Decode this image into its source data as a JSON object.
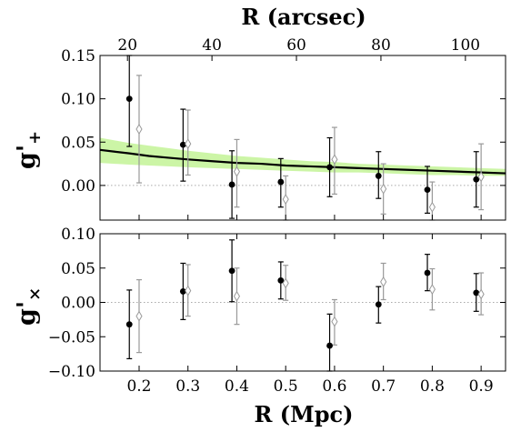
{
  "chart_data": [
    {
      "type": "scatter",
      "panel": "top",
      "xlabel": "R (Mpc)",
      "top_xlabel": "R (arcsec)",
      "ylabel": "g'",
      "ylabel_sub": "+",
      "xlim": [
        0.12,
        0.95
      ],
      "ylim": [
        -0.04,
        0.15
      ],
      "top_xlim": [
        13.5,
        109.5
      ],
      "top_xticks": [
        "20",
        "40",
        "60",
        "80",
        "100"
      ],
      "top_xtick_values": [
        20,
        40,
        60,
        80,
        100
      ],
      "yticks": [
        "0.15",
        "0.10",
        "0.05",
        "0.00"
      ],
      "ytick_values": [
        0.15,
        0.1,
        0.05,
        0.0
      ],
      "zero_line": true,
      "colors": {
        "filled": "#000000",
        "open": "#999999",
        "band": "#ccf5a6",
        "model": "#000000"
      },
      "series": [
        {
          "marker": "filled-circle",
          "points": [
            {
              "x": 0.18,
              "y": 0.1,
              "ylo": 0.045,
              "yhi": 0.15
            },
            {
              "x": 0.29,
              "y": 0.047,
              "ylo": 0.005,
              "yhi": 0.088
            },
            {
              "x": 0.39,
              "y": 0.001,
              "ylo": -0.038,
              "yhi": 0.04
            },
            {
              "x": 0.49,
              "y": 0.004,
              "ylo": -0.025,
              "yhi": 0.031
            },
            {
              "x": 0.59,
              "y": 0.021,
              "ylo": -0.013,
              "yhi": 0.055
            },
            {
              "x": 0.69,
              "y": 0.011,
              "ylo": -0.015,
              "yhi": 0.039
            },
            {
              "x": 0.79,
              "y": -0.005,
              "ylo": -0.032,
              "yhi": 0.022
            },
            {
              "x": 0.89,
              "y": 0.007,
              "ylo": -0.025,
              "yhi": 0.039
            }
          ]
        },
        {
          "marker": "open-diamond",
          "points": [
            {
              "x": 0.2,
              "y": 0.065,
              "ylo": 0.003,
              "yhi": 0.127
            },
            {
              "x": 0.3,
              "y": 0.048,
              "ylo": 0.012,
              "yhi": 0.087
            },
            {
              "x": 0.4,
              "y": 0.016,
              "ylo": -0.025,
              "yhi": 0.053
            },
            {
              "x": 0.5,
              "y": -0.016,
              "ylo": -0.04,
              "yhi": 0.011
            },
            {
              "x": 0.6,
              "y": 0.03,
              "ylo": -0.01,
              "yhi": 0.067
            },
            {
              "x": 0.7,
              "y": -0.004,
              "ylo": -0.033,
              "yhi": 0.025
            },
            {
              "x": 0.8,
              "y": -0.025,
              "ylo": -0.04,
              "yhi": 0.004
            },
            {
              "x": 0.9,
              "y": 0.01,
              "ylo": -0.028,
              "yhi": 0.048
            }
          ]
        }
      ],
      "model_curve": {
        "x": [
          0.12,
          0.15,
          0.18,
          0.22,
          0.26,
          0.3,
          0.35,
          0.4,
          0.45,
          0.5,
          0.55,
          0.6,
          0.65,
          0.7,
          0.75,
          0.8,
          0.85,
          0.9,
          0.95
        ],
        "y": [
          0.041,
          0.039,
          0.037,
          0.034,
          0.032,
          0.03,
          0.028,
          0.026,
          0.025,
          0.023,
          0.022,
          0.021,
          0.02,
          0.019,
          0.018,
          0.017,
          0.016,
          0.015,
          0.014
        ],
        "low": [
          0.026,
          0.025,
          0.024,
          0.023,
          0.022,
          0.021,
          0.02,
          0.019,
          0.018,
          0.017,
          0.016,
          0.015,
          0.015,
          0.014,
          0.013,
          0.012,
          0.012,
          0.011,
          0.011
        ],
        "high": [
          0.055,
          0.052,
          0.049,
          0.046,
          0.043,
          0.04,
          0.037,
          0.034,
          0.032,
          0.03,
          0.028,
          0.027,
          0.025,
          0.024,
          0.023,
          0.022,
          0.021,
          0.02,
          0.019
        ]
      }
    },
    {
      "type": "scatter",
      "panel": "bottom",
      "xlabel": "R (Mpc)",
      "ylabel": "g'",
      "ylabel_sub": "×",
      "xlim": [
        0.12,
        0.95
      ],
      "ylim": [
        -0.1,
        0.1
      ],
      "xticks": [
        "0.2",
        "0.3",
        "0.4",
        "0.5",
        "0.6",
        "0.7",
        "0.8",
        "0.9"
      ],
      "xtick_values": [
        0.2,
        0.3,
        0.4,
        0.5,
        0.6,
        0.7,
        0.8,
        0.9
      ],
      "yticks": [
        "0.10",
        "0.05",
        "0.00",
        "−0.05",
        "−0.10"
      ],
      "ytick_values": [
        0.1,
        0.05,
        0.0,
        -0.05,
        -0.1
      ],
      "zero_line": true,
      "colors": {
        "filled": "#000000",
        "open": "#999999"
      },
      "series": [
        {
          "marker": "filled-circle",
          "points": [
            {
              "x": 0.18,
              "y": -0.032,
              "ylo": -0.082,
              "yhi": 0.018
            },
            {
              "x": 0.29,
              "y": 0.016,
              "ylo": -0.025,
              "yhi": 0.057
            },
            {
              "x": 0.39,
              "y": 0.046,
              "ylo": 0.001,
              "yhi": 0.091
            },
            {
              "x": 0.49,
              "y": 0.032,
              "ylo": 0.005,
              "yhi": 0.059
            },
            {
              "x": 0.59,
              "y": -0.063,
              "ylo": -0.1,
              "yhi": -0.017
            },
            {
              "x": 0.69,
              "y": -0.003,
              "ylo": -0.03,
              "yhi": 0.023
            },
            {
              "x": 0.79,
              "y": 0.043,
              "ylo": 0.017,
              "yhi": 0.07
            },
            {
              "x": 0.89,
              "y": 0.014,
              "ylo": -0.013,
              "yhi": 0.042
            }
          ]
        },
        {
          "marker": "open-diamond",
          "points": [
            {
              "x": 0.2,
              "y": -0.02,
              "ylo": -0.073,
              "yhi": 0.033
            },
            {
              "x": 0.3,
              "y": 0.017,
              "ylo": -0.02,
              "yhi": 0.055
            },
            {
              "x": 0.4,
              "y": 0.009,
              "ylo": -0.032,
              "yhi": 0.05
            },
            {
              "x": 0.5,
              "y": 0.028,
              "ylo": 0.003,
              "yhi": 0.054
            },
            {
              "x": 0.6,
              "y": -0.028,
              "ylo": -0.062,
              "yhi": 0.004
            },
            {
              "x": 0.7,
              "y": 0.03,
              "ylo": 0.004,
              "yhi": 0.057
            },
            {
              "x": 0.8,
              "y": 0.019,
              "ylo": -0.011,
              "yhi": 0.049
            },
            {
              "x": 0.9,
              "y": 0.012,
              "ylo": -0.018,
              "yhi": 0.043
            }
          ]
        }
      ]
    }
  ]
}
